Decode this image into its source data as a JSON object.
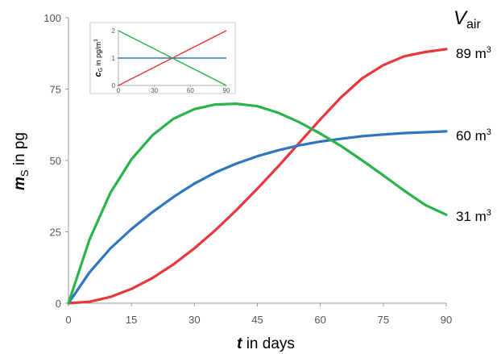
{
  "chart_data": [
    {
      "type": "line",
      "x": [
        0,
        5,
        10,
        15,
        20,
        25,
        30,
        35,
        40,
        45,
        50,
        55,
        60,
        65,
        70,
        75,
        80,
        85,
        90
      ],
      "xlim": [
        0,
        90
      ],
      "ylim": [
        0,
        100
      ],
      "xticks": [
        "0",
        "15",
        "30",
        "45",
        "60",
        "75",
        "90"
      ],
      "yticks": [
        "0",
        "25",
        "50",
        "75",
        "100"
      ],
      "xlabel": {
        "italic": "t",
        "rest": " in days"
      },
      "ylabel": {
        "italic": "m",
        "sub": "S",
        "rest": " in pg"
      },
      "right_title": {
        "italic": "V",
        "sub": "air"
      },
      "series": [
        {
          "color": "#e8383b",
          "label": {
            "value": "89 m",
            "sup": "3"
          },
          "values": [
            0,
            0.5,
            2.2,
            5.0,
            8.8,
            13.6,
            19.2,
            25.6,
            32.6,
            40.1,
            48.0,
            56.2,
            64.4,
            72.2,
            78.8,
            83.4,
            86.5,
            88.0,
            89.0
          ]
        },
        {
          "color": "#2f76bd",
          "label": {
            "value": "60 m",
            "sup": "3"
          },
          "values": [
            0,
            10.8,
            19.2,
            26.0,
            31.9,
            37.2,
            41.9,
            45.8,
            48.9,
            51.5,
            53.6,
            55.3,
            56.6,
            57.6,
            58.5,
            59.1,
            59.6,
            59.9,
            60.2
          ]
        },
        {
          "color": "#29b34a",
          "label": {
            "value": "31 m",
            "sup": "3"
          },
          "values": [
            0,
            22.3,
            38.7,
            50.4,
            58.8,
            64.6,
            68.0,
            69.6,
            69.9,
            69.0,
            66.7,
            63.4,
            59.4,
            55.0,
            50.0,
            44.8,
            39.4,
            34.4,
            31.0
          ]
        }
      ]
    },
    {
      "type": "line",
      "x": [
        0,
        90
      ],
      "xlim": [
        0,
        90
      ],
      "ylim": [
        0,
        2
      ],
      "xticks": [
        "0",
        "30",
        "60",
        "90"
      ],
      "yticks": [
        "0",
        "1",
        "2"
      ],
      "ylabel": {
        "italic": "c",
        "sub": "G",
        "rest": " in pg/m",
        "sup": "3"
      },
      "series": [
        {
          "color": "#e8383b",
          "values": [
            0,
            2
          ]
        },
        {
          "color": "#2f76bd",
          "values": [
            1,
            1
          ]
        },
        {
          "color": "#29b34a",
          "values": [
            2,
            0
          ]
        }
      ]
    }
  ]
}
